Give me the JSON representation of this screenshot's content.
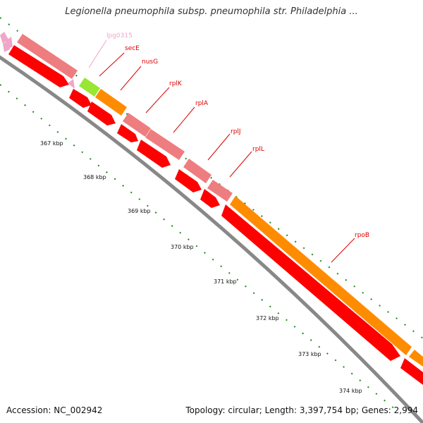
{
  "title": "Legionella pneumophila subsp. pneumophila str. Philadelphia ...",
  "footer": {
    "accession": "Accession: NC_002942",
    "genome_info": "Topology: circular; Length: 3,397,754 bp; Genes: 2,994"
  },
  "colors": {
    "cds_red": "#ff0000",
    "gene_pink": "#ee7d80",
    "gene_orange": "#ff8c00",
    "gene_green": "#99e633",
    "hypothetical_light_pink": "#f0a6c8",
    "backbone_gray": "#888888",
    "tick_green": "#1a8a1a",
    "label_red": "#dd0000"
  },
  "kbp_labels": [
    "367 kbp",
    "368 kbp",
    "369 kbp",
    "370 kbp",
    "371 kbp",
    "372 kbp",
    "373 kbp",
    "374 kbp"
  ],
  "gene_labels": [
    {
      "name": "lpg0315",
      "color": "#f3a3c9"
    },
    {
      "name": "secE",
      "color": "#dd0000"
    },
    {
      "name": "nusG",
      "color": "#dd0000"
    },
    {
      "name": "rplK",
      "color": "#dd0000"
    },
    {
      "name": "rplA",
      "color": "#dd0000"
    },
    {
      "name": "rplJ",
      "color": "#dd0000"
    },
    {
      "name": "rplL",
      "color": "#dd0000"
    },
    {
      "name": "rpoB",
      "color": "#dd0000"
    }
  ]
}
